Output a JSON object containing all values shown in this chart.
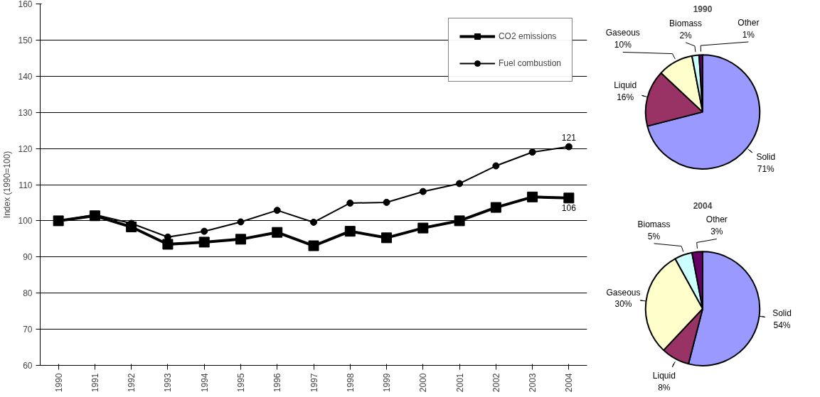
{
  "chart_data": [
    {
      "type": "line",
      "ylabel": "Index (1990=100)",
      "categories": [
        "1990",
        "1991",
        "1992",
        "1993",
        "1994",
        "1995",
        "1996",
        "1997",
        "1998",
        "1999",
        "2000",
        "2001",
        "2002",
        "2003",
        "2004"
      ],
      "ylim": [
        60,
        160
      ],
      "yticks": [
        60,
        70,
        80,
        90,
        100,
        110,
        120,
        130,
        140,
        150,
        160
      ],
      "grid": "y",
      "legend": "top right",
      "series": [
        {
          "name": "CO2 emissions",
          "color": "#000000",
          "marker": "square",
          "values": [
            100,
            101.4,
            98.3,
            93.5,
            94.1,
            94.9,
            96.8,
            93.1,
            97.1,
            95.3,
            98.0,
            100,
            103.7,
            106.6,
            106.3
          ],
          "value_labels": [
            null,
            null,
            null,
            null,
            null,
            null,
            null,
            null,
            null,
            null,
            null,
            null,
            null,
            null,
            "106"
          ]
        },
        {
          "name": "Fuel combustion",
          "color": "#000000",
          "marker": "circle",
          "values": [
            100,
            101.7,
            99.3,
            95.5,
            97.1,
            99.7,
            102.9,
            99.6,
            104.9,
            105.1,
            108.1,
            110.3,
            115.2,
            119,
            120.5
          ],
          "value_labels": [
            null,
            null,
            null,
            null,
            null,
            null,
            null,
            null,
            null,
            null,
            null,
            null,
            null,
            null,
            "121"
          ]
        }
      ]
    },
    {
      "type": "pie",
      "title": "1990",
      "categories": [
        "Solid",
        "Liquid",
        "Gaseous",
        "Biomass",
        "Other"
      ],
      "values": [
        71,
        16,
        10,
        2,
        1
      ],
      "value_labels": [
        "71%",
        "16%",
        "10%",
        "2%",
        "1%"
      ],
      "colors": [
        "#9999ff",
        "#993366",
        "#ffffcc",
        "#ccffff",
        "#660066"
      ],
      "data_labels": true
    },
    {
      "type": "pie",
      "title": "2004",
      "categories": [
        "Solid",
        "Liquid",
        "Gaseous",
        "Biomass",
        "Other"
      ],
      "values": [
        54,
        8,
        30,
        5,
        3
      ],
      "value_labels": [
        "54%",
        "8%",
        "30%",
        "5%",
        "3%"
      ],
      "colors": [
        "#9999ff",
        "#993366",
        "#ffffcc",
        "#ccffff",
        "#660066"
      ],
      "data_labels": true
    }
  ]
}
